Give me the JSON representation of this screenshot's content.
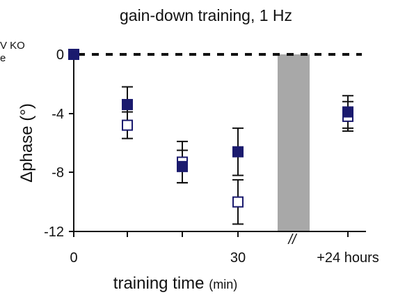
{
  "chart_data": {
    "type": "scatter",
    "title": "gain-down training, 1 Hz",
    "xlabel": "training time",
    "xlabel_unit": "(min)",
    "ylabel": "Δphase (°)",
    "ylim": [
      -12,
      0
    ],
    "yticks": [
      "0",
      "-4",
      "-8",
      "-12"
    ],
    "xtick_labels": [
      "0",
      "30",
      "+24 hours"
    ],
    "x_break_label": "//",
    "legend_fragment": [
      "V KO",
      "e"
    ],
    "reference_line_y": 0,
    "shaded_gap": "between 30 min and +24 hours",
    "colors": {
      "series": "#1a1a6e",
      "error_bars": "#111111",
      "gap": "#a8a8a8"
    },
    "series": [
      {
        "marker": "filled-square",
        "points": [
          {
            "x": "0",
            "y": 0,
            "err": 0
          },
          {
            "x": "10",
            "y": -3.4,
            "err": 1.2
          },
          {
            "x": "20",
            "y": -7.6,
            "err": 1.1
          },
          {
            "x": "30",
            "y": -6.6,
            "err": 1.6
          },
          {
            "x": "+24 hours",
            "y": -3.9,
            "err": 1.1
          }
        ]
      },
      {
        "marker": "open-square",
        "points": [
          {
            "x": "0",
            "y": 0,
            "err": 0
          },
          {
            "x": "10",
            "y": -4.8,
            "err": 0.9
          },
          {
            "x": "20",
            "y": -7.3,
            "err": 1.4
          },
          {
            "x": "30",
            "y": -10.0,
            "err": 1.5
          },
          {
            "x": "+24 hours",
            "y": -4.2,
            "err": 1.0
          }
        ]
      }
    ]
  }
}
